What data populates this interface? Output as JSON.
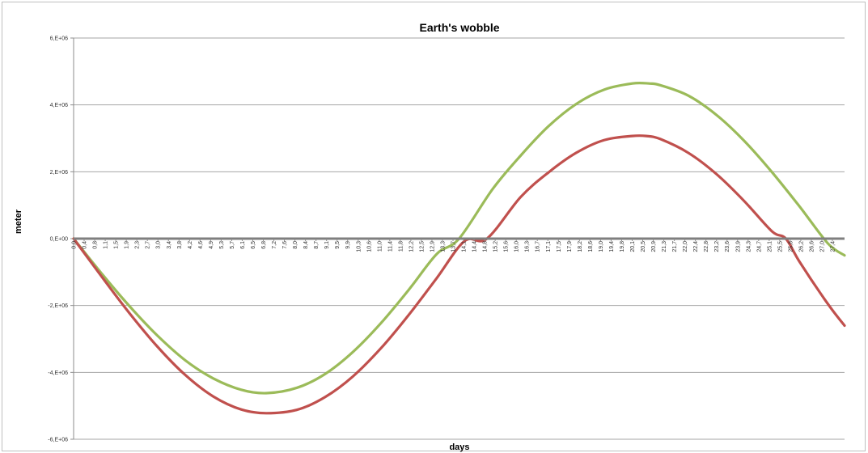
{
  "chart_data": {
    "type": "line",
    "title": "Earth's wobble",
    "xlabel": "days",
    "ylabel": "meter",
    "ylim": [
      -6000000,
      6000000
    ],
    "xlim": [
      0,
      27.6
    ],
    "grid": "horizontal",
    "legend": "none",
    "y_ticks": [
      {
        "value": 6000000,
        "label": "6,E+06"
      },
      {
        "value": 4000000,
        "label": "4,E+06"
      },
      {
        "value": 2000000,
        "label": "2,E+06"
      },
      {
        "value": 0,
        "label": "0,E+00"
      },
      {
        "value": -2000000,
        "label": "-2,E+06"
      },
      {
        "value": -4000000,
        "label": "-4,E+06"
      },
      {
        "value": -6000000,
        "label": "-6,E+06"
      }
    ],
    "x_tick_labels": [
      "0,0",
      "0,4",
      "0,8",
      "1,1",
      "1,5",
      "1,9",
      "2,3",
      "2,7",
      "3,0",
      "3,4",
      "3,8",
      "4,2",
      "4,6",
      "4,9",
      "5,3",
      "5,7",
      "6,1",
      "6,5",
      "6,8",
      "7,2",
      "7,6",
      "8,0",
      "8,4",
      "8,7",
      "9,1",
      "9,5",
      "9,9",
      "10,3",
      "10,6",
      "11,0",
      "11,4",
      "11,8",
      "12,2",
      "12,5",
      "12,9",
      "13,3",
      "13,7",
      "14,1",
      "14,4",
      "14,8",
      "15,2",
      "15,6",
      "16,0",
      "16,3",
      "16,7",
      "17,1",
      "17,5",
      "17,9",
      "18,2",
      "18,6",
      "19,0",
      "19,4",
      "19,8",
      "20,1",
      "20,5",
      "20,9",
      "21,3",
      "21,7",
      "22,0",
      "22,4",
      "22,8",
      "23,2",
      "23,6",
      "23,9",
      "24,3",
      "24,7",
      "25,1",
      "25,5",
      "25,8",
      "26,2",
      "26,6",
      "27,0",
      "27,4"
    ],
    "series": [
      {
        "color": "#9bbb59",
        "x": [
          0,
          1,
          2,
          3,
          4,
          5,
          6,
          6.9,
          8,
          9,
          10,
          11,
          12,
          13,
          13.8,
          15,
          16,
          17,
          18,
          19,
          20,
          20.6,
          21,
          22,
          23,
          24,
          25,
          26,
          27,
          27.6
        ],
        "values": [
          0,
          -1040000,
          -2020000,
          -2900000,
          -3640000,
          -4180000,
          -4520000,
          -4620000,
          -4460000,
          -4050000,
          -3390000,
          -2530000,
          -1530000,
          -460000,
          0,
          1480000,
          2480000,
          3360000,
          4030000,
          4460000,
          4640000,
          4640000,
          4590000,
          4280000,
          3710000,
          2930000,
          1990000,
          950000,
          -140000,
          -500000
        ]
      },
      {
        "color": "#c0504d",
        "x": [
          0,
          1,
          2,
          3,
          4,
          5,
          6,
          6.9,
          8,
          9,
          10,
          11,
          12,
          13,
          14,
          14.8,
          16,
          17,
          18,
          19,
          20,
          20.5,
          21,
          22,
          23,
          24,
          25,
          25.5,
          26,
          27,
          27.6
        ],
        "values": [
          0,
          -1130000,
          -2230000,
          -3230000,
          -4080000,
          -4720000,
          -5110000,
          -5220000,
          -5120000,
          -4740000,
          -4120000,
          -3280000,
          -2280000,
          -1180000,
          -70000,
          0,
          1240000,
          1980000,
          2570000,
          2950000,
          3070000,
          3070000,
          2980000,
          2570000,
          1940000,
          1130000,
          220000,
          0,
          -710000,
          -1950000,
          -2600000
        ]
      }
    ]
  }
}
